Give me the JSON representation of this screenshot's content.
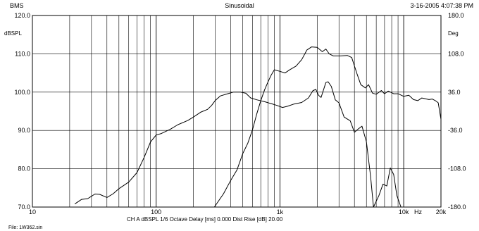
{
  "header": {
    "left": "BMS",
    "center": "Sinusoidal",
    "right": "3-16-2005 4:07:38 PM"
  },
  "footer": {
    "info": "CH A   dBSPL   1/6 Octave   Delay [ms] 0.000   Dist Rise [dB] 20.00",
    "file": "File: 1W362.sin"
  },
  "chart_data": {
    "type": "line",
    "x_scale": "log",
    "xlim": [
      10,
      20000
    ],
    "x_ticks": [
      {
        "value": 10,
        "label": "10"
      },
      {
        "value": 100,
        "label": "100"
      },
      {
        "value": 1000,
        "label": "1k"
      },
      {
        "value": 10000,
        "label": "10k"
      },
      {
        "value": 20000,
        "label": "20k"
      }
    ],
    "x_unit": "Hz",
    "y_left": {
      "label": "dBSPL",
      "ylim": [
        70,
        120
      ],
      "ticks": [
        70,
        80,
        90,
        100,
        110,
        120
      ],
      "tick_labels": [
        "70.0",
        "80.0",
        "90.0",
        "100.0",
        "110.0",
        "120.0"
      ]
    },
    "y_right": {
      "label": "Deg",
      "ylim": [
        -180,
        180
      ],
      "ticks": [
        -180,
        -108,
        -36,
        36,
        108,
        180
      ],
      "tick_labels": [
        "-180.0",
        "-108.0",
        "-36.0",
        "36.0",
        "108.0",
        "180.0"
      ]
    },
    "grid": true,
    "series": [
      {
        "axis": "left",
        "points": [
          [
            22,
            70.8
          ],
          [
            25,
            72
          ],
          [
            28,
            72.2
          ],
          [
            32,
            73.4
          ],
          [
            35,
            73.3
          ],
          [
            40,
            72.5
          ],
          [
            45,
            73.5
          ],
          [
            50,
            74.8
          ],
          [
            60,
            76.5
          ],
          [
            70,
            79
          ],
          [
            80,
            83
          ],
          [
            90,
            87
          ],
          [
            100,
            88.8
          ],
          [
            110,
            89.2
          ],
          [
            130,
            90.3
          ],
          [
            150,
            91.5
          ],
          [
            180,
            92.6
          ],
          [
            200,
            93.5
          ],
          [
            230,
            94.8
          ],
          [
            260,
            95.5
          ],
          [
            280,
            96.5
          ],
          [
            300,
            97.8
          ],
          [
            330,
            99
          ],
          [
            380,
            99.6
          ],
          [
            420,
            100
          ],
          [
            480,
            100
          ],
          [
            530,
            99.7
          ],
          [
            580,
            98.5
          ],
          [
            650,
            98
          ],
          [
            750,
            97.5
          ],
          [
            850,
            97
          ],
          [
            950,
            96.5
          ],
          [
            1050,
            96
          ],
          [
            1150,
            96.3
          ],
          [
            1300,
            96.9
          ],
          [
            1500,
            97.3
          ],
          [
            1700,
            98.5
          ],
          [
            1850,
            100.4
          ],
          [
            1950,
            100.7
          ],
          [
            2050,
            99.2
          ],
          [
            2150,
            98.6
          ],
          [
            2350,
            102.5
          ],
          [
            2450,
            102.7
          ],
          [
            2600,
            101.5
          ],
          [
            2800,
            98
          ],
          [
            3000,
            97.2
          ],
          [
            3300,
            93.5
          ],
          [
            3700,
            92.5
          ],
          [
            4000,
            89.5
          ],
          [
            4300,
            90.4
          ],
          [
            4600,
            91.1
          ],
          [
            5000,
            87
          ],
          [
            5400,
            78
          ],
          [
            5700,
            70
          ],
          [
            6300,
            73
          ],
          [
            6800,
            76
          ],
          [
            7300,
            75.5
          ],
          [
            7800,
            80.2
          ],
          [
            8300,
            78.5
          ],
          [
            8800,
            73
          ],
          [
            9500,
            70
          ]
        ]
      },
      {
        "axis": "right",
        "points": [
          [
            295,
            -180
          ],
          [
            350,
            -155
          ],
          [
            400,
            -130
          ],
          [
            450,
            -110
          ],
          [
            500,
            -80
          ],
          [
            550,
            -60
          ],
          [
            600,
            -35
          ],
          [
            650,
            -5
          ],
          [
            700,
            20
          ],
          [
            750,
            40
          ],
          [
            800,
            55
          ],
          [
            850,
            68
          ],
          [
            900,
            78
          ],
          [
            1000,
            75
          ],
          [
            1100,
            72
          ],
          [
            1200,
            78
          ],
          [
            1350,
            85
          ],
          [
            1500,
            97
          ],
          [
            1650,
            115
          ],
          [
            1800,
            121
          ],
          [
            2000,
            120
          ],
          [
            2200,
            112
          ],
          [
            2350,
            117
          ],
          [
            2500,
            108
          ],
          [
            2700,
            104
          ],
          [
            3100,
            104
          ],
          [
            3500,
            105
          ],
          [
            3800,
            101
          ],
          [
            4200,
            70
          ],
          [
            4500,
            50
          ],
          [
            4900,
            44
          ],
          [
            5200,
            50
          ],
          [
            5600,
            34
          ],
          [
            6000,
            32
          ],
          [
            6600,
            39
          ],
          [
            7000,
            33
          ],
          [
            7500,
            38
          ],
          [
            8300,
            33
          ],
          [
            9000,
            33
          ],
          [
            10000,
            28
          ],
          [
            11000,
            30
          ],
          [
            12000,
            22
          ],
          [
            13000,
            20
          ],
          [
            14000,
            25
          ],
          [
            16000,
            22
          ],
          [
            17000,
            23
          ],
          [
            18000,
            20
          ],
          [
            19000,
            16
          ],
          [
            20000,
            -15
          ]
        ]
      }
    ]
  }
}
